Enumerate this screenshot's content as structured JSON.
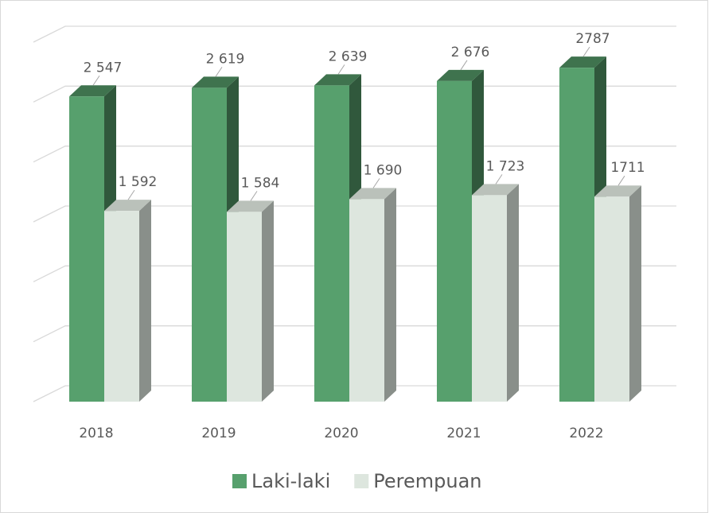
{
  "chart_data": {
    "type": "bar3d",
    "categories": [
      "2018",
      "2019",
      "2020",
      "2021",
      "2022"
    ],
    "series": [
      {
        "name": "Laki-laki",
        "color": "#57a06d",
        "values": [
          2547,
          2619,
          2639,
          2676,
          2787
        ],
        "value_labels": [
          "2 547",
          "2 619",
          "2 639",
          "2 676",
          "2787"
        ]
      },
      {
        "name": "Perempuan",
        "color": "#dde6de",
        "values": [
          1592,
          1584,
          1690,
          1723,
          1711
        ],
        "value_labels": [
          "1 592",
          "1 584",
          "1 690",
          "1 723",
          "1711"
        ]
      }
    ],
    "ylim": [
      0,
      3000
    ],
    "yticks": [
      0,
      500,
      1000,
      1500,
      2000,
      2500,
      3000
    ],
    "grid": true,
    "legend": "bottom"
  }
}
